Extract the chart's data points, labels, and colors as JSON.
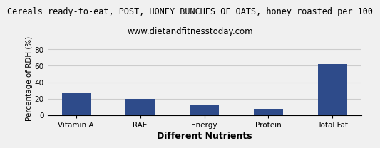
{
  "title": "Cereals ready-to-eat, POST, HONEY BUNCHES OF OATS, honey roasted per 100",
  "subtitle": "www.dietandfitnesstoday.com",
  "categories": [
    "Vitamin A",
    "RAE",
    "Energy",
    "Protein",
    "Total Fat"
  ],
  "values": [
    27,
    20,
    13,
    8,
    62
  ],
  "bar_color": "#2e4b8a",
  "xlabel": "Different Nutrients",
  "ylabel": "Percentage of RDH (%)",
  "ylim": [
    0,
    90
  ],
  "yticks": [
    0,
    20,
    40,
    60,
    80
  ],
  "title_fontsize": 8.5,
  "subtitle_fontsize": 8.5,
  "xlabel_fontsize": 9,
  "ylabel_fontsize": 7.5,
  "tick_fontsize": 7.5,
  "background_color": "#f0f0f0",
  "grid_color": "#cccccc",
  "bar_width": 0.45
}
